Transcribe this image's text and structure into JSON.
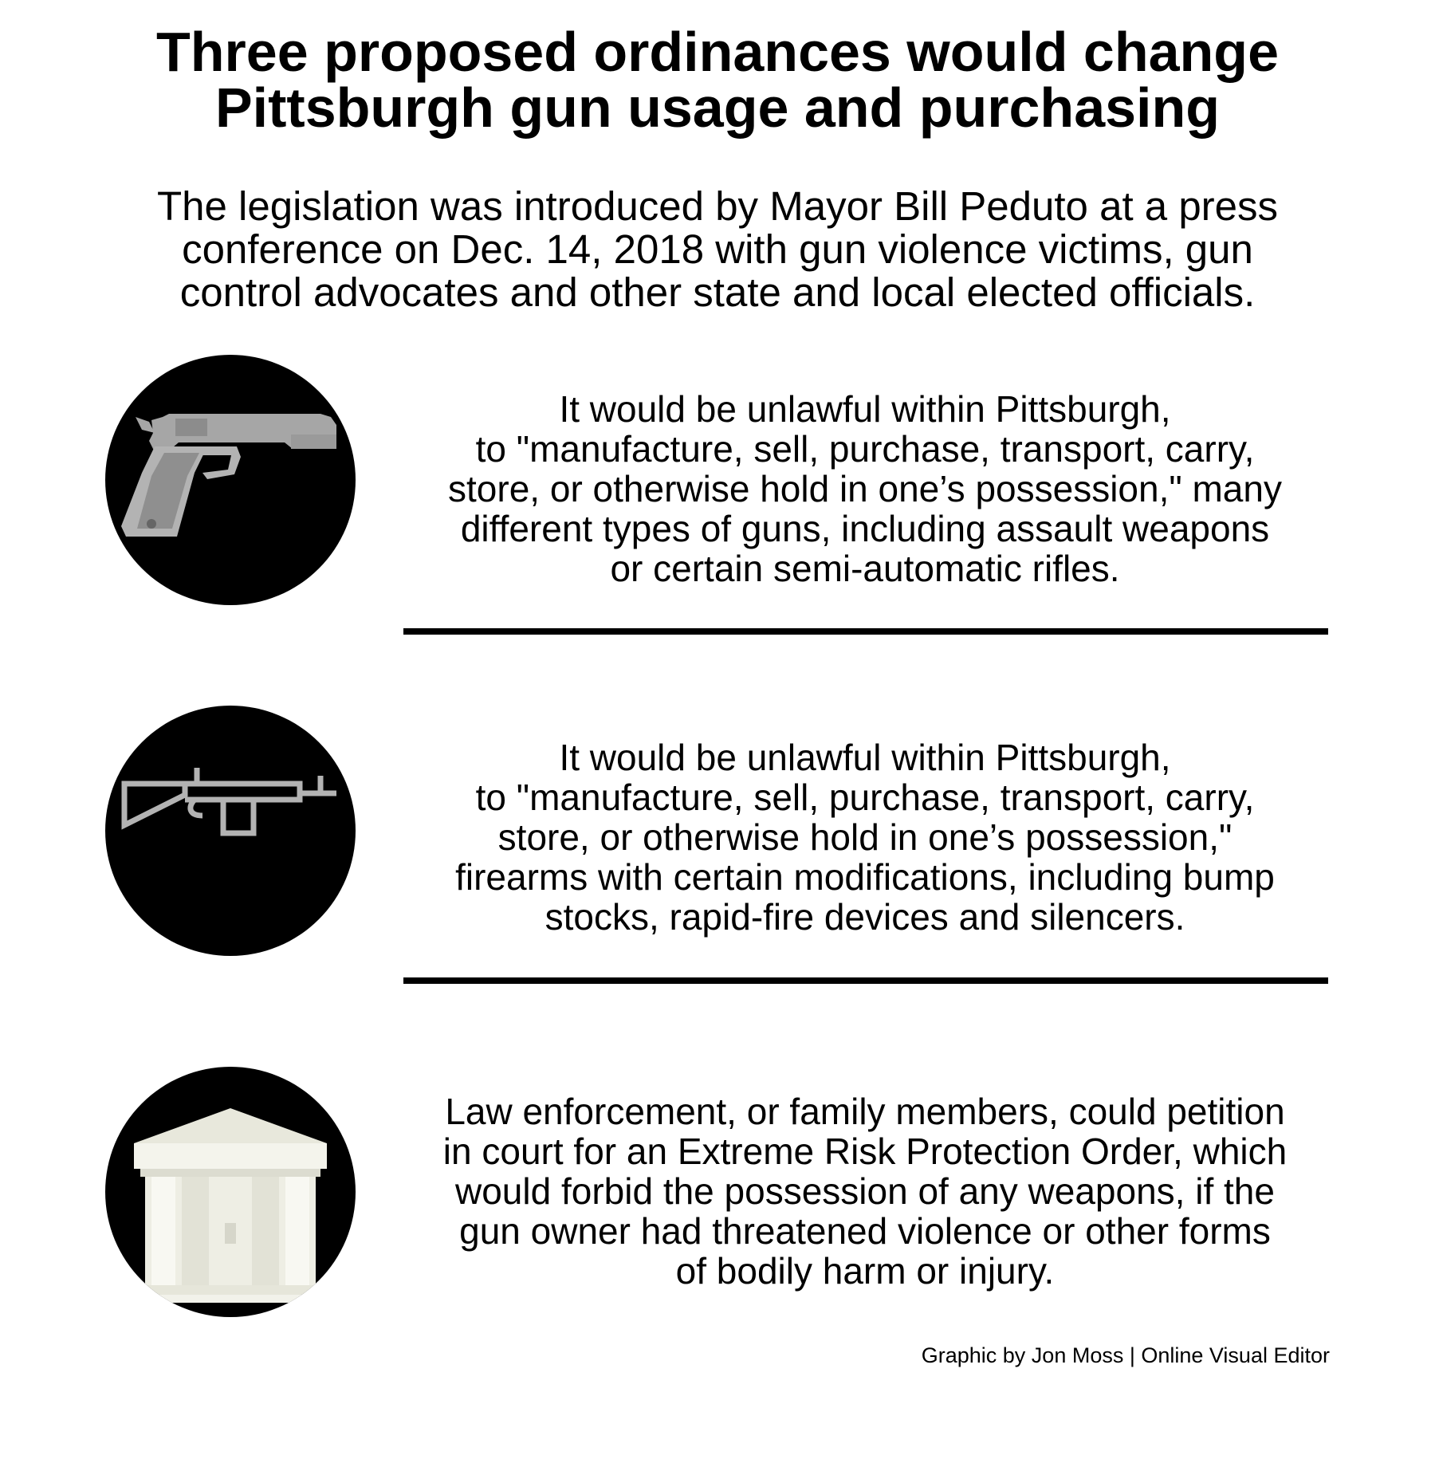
{
  "title": {
    "line1": "Three proposed ordinances would change",
    "line2": "Pittsburgh gun usage and purchasing"
  },
  "subtitle": {
    "line1": "The legislation was introduced by Mayor Bill Peduto at a press",
    "line2": "conference on Dec. 14, 2018 with gun violence victims, gun",
    "line3": "control advocates and other state and local elected officials."
  },
  "items": [
    {
      "icon": "handgun-icon",
      "lines": [
        "It would be unlawful within Pittsburgh,",
        "to \"manufacture, sell, purchase, transport, carry,",
        "store, or otherwise hold in one’s possession,\" many",
        "different types of guns, including assault weapons",
        "or certain semi-automatic rifles."
      ]
    },
    {
      "icon": "rifle-icon",
      "lines": [
        "It would be unlawful within Pittsburgh,",
        "to \"manufacture, sell, purchase, transport, carry,",
        "store, or otherwise hold in one’s possession,\"",
        "firearms with certain modifications, including bump",
        "stocks, rapid-fire devices and silencers."
      ]
    },
    {
      "icon": "courthouse-icon",
      "lines": [
        "Law enforcement, or family members, could petition",
        "in court for an Extreme Risk Protection Order, which",
        "would forbid the possession of any weapons, if the",
        "gun owner had threatened violence or other forms",
        "of bodily harm or injury."
      ]
    }
  ],
  "credit": "Graphic by Jon Moss | Online Visual Editor",
  "colors": {
    "background": "#ffffff",
    "text": "#000000",
    "icon_circle": "#000000",
    "gun_gray": "#b3b3b3",
    "building_cream": "#efefe6"
  }
}
